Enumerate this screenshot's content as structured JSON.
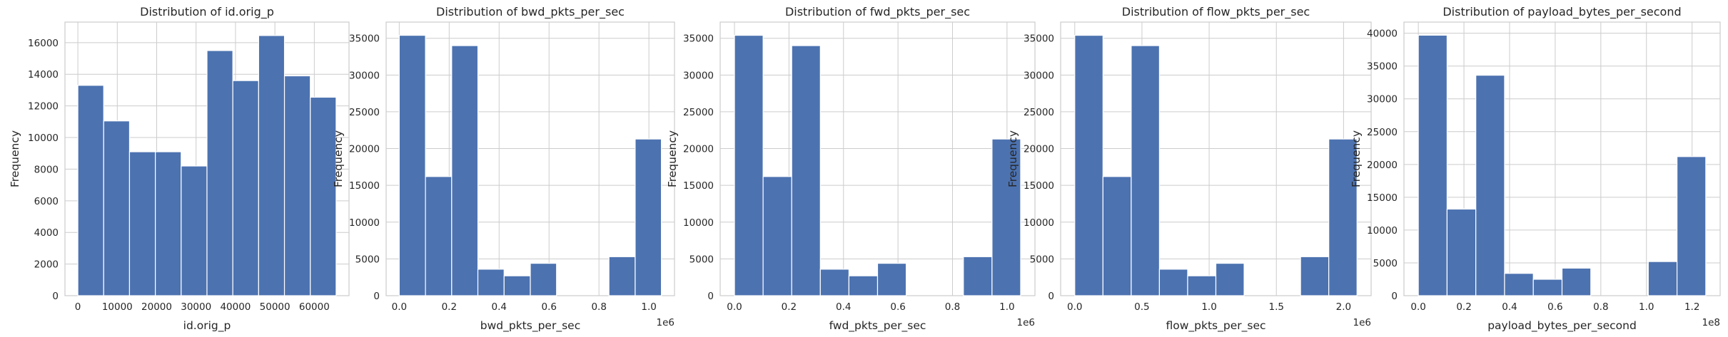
{
  "chart_data": [
    {
      "type": "bar",
      "title": "Distribution of id.orig_p",
      "xlabel": "id.orig_p",
      "ylabel": "Frequency",
      "x_offset_label": "",
      "bin_edges": [
        0,
        6553.5,
        13107,
        19660.5,
        26214,
        32767.5,
        39321,
        45874.5,
        52428,
        58981.5,
        65535
      ],
      "values": [
        13300,
        11050,
        9100,
        9100,
        8200,
        15500,
        13600,
        16450,
        13900,
        12550
      ],
      "xlim": [
        -3276.75,
        68811.75
      ],
      "ylim": [
        0,
        17300
      ],
      "xticks": [
        0,
        10000,
        20000,
        30000,
        40000,
        50000,
        60000
      ],
      "xtick_labels": [
        "0",
        "10000",
        "20000",
        "30000",
        "40000",
        "50000",
        "60000"
      ],
      "yticks": [
        0,
        2000,
        4000,
        6000,
        8000,
        10000,
        12000,
        14000,
        16000
      ],
      "ytick_labels": [
        "0",
        "2000",
        "4000",
        "6000",
        "8000",
        "10000",
        "12000",
        "14000",
        "16000"
      ],
      "grid": true
    },
    {
      "type": "bar",
      "title": "Distribution of bwd_pkts_per_sec",
      "xlabel": "bwd_pkts_per_sec",
      "ylabel": "Frequency",
      "x_offset_label": "1e6",
      "bin_edges": [
        0,
        0.105,
        0.21,
        0.315,
        0.42,
        0.525,
        0.63,
        0.735,
        0.84,
        0.945,
        1.05
      ],
      "values": [
        35400,
        16200,
        34000,
        3600,
        2700,
        4400,
        0,
        0,
        5300,
        21300
      ],
      "xlim": [
        -0.0525,
        1.1025
      ],
      "ylim": [
        0,
        37200
      ],
      "xticks": [
        0,
        0.2,
        0.4,
        0.6,
        0.8,
        1.0
      ],
      "xtick_labels": [
        "0.0",
        "0.2",
        "0.4",
        "0.6",
        "0.8",
        "1.0"
      ],
      "yticks": [
        0,
        5000,
        10000,
        15000,
        20000,
        25000,
        30000,
        35000
      ],
      "ytick_labels": [
        "0",
        "5000",
        "10000",
        "15000",
        "20000",
        "25000",
        "30000",
        "35000"
      ],
      "grid": true
    },
    {
      "type": "bar",
      "title": "Distribution of fwd_pkts_per_sec",
      "xlabel": "fwd_pkts_per_sec",
      "ylabel": "Frequency",
      "x_offset_label": "1e6",
      "bin_edges": [
        0,
        0.105,
        0.21,
        0.315,
        0.42,
        0.525,
        0.63,
        0.735,
        0.84,
        0.945,
        1.05
      ],
      "values": [
        35400,
        16200,
        34000,
        3600,
        2700,
        4400,
        0,
        0,
        5300,
        21300
      ],
      "xlim": [
        -0.0525,
        1.1025
      ],
      "ylim": [
        0,
        37200
      ],
      "xticks": [
        0,
        0.2,
        0.4,
        0.6,
        0.8,
        1.0
      ],
      "xtick_labels": [
        "0.0",
        "0.2",
        "0.4",
        "0.6",
        "0.8",
        "1.0"
      ],
      "yticks": [
        0,
        5000,
        10000,
        15000,
        20000,
        25000,
        30000,
        35000
      ],
      "ytick_labels": [
        "0",
        "5000",
        "10000",
        "15000",
        "20000",
        "25000",
        "30000",
        "35000"
      ],
      "grid": true
    },
    {
      "type": "bar",
      "title": "Distribution of flow_pkts_per_sec",
      "xlabel": "flow_pkts_per_sec",
      "ylabel": "Frequency",
      "x_offset_label": "1e6",
      "bin_edges": [
        0,
        0.21,
        0.42,
        0.63,
        0.84,
        1.05,
        1.26,
        1.47,
        1.68,
        1.89,
        2.1
      ],
      "values": [
        35400,
        16200,
        34000,
        3600,
        2700,
        4400,
        0,
        0,
        5300,
        21300
      ],
      "xlim": [
        -0.105,
        2.205
      ],
      "ylim": [
        0,
        37200
      ],
      "xticks": [
        0,
        0.5,
        1.0,
        1.5,
        2.0
      ],
      "xtick_labels": [
        "0.0",
        "0.5",
        "1.0",
        "1.5",
        "2.0"
      ],
      "yticks": [
        0,
        5000,
        10000,
        15000,
        20000,
        25000,
        30000,
        35000
      ],
      "ytick_labels": [
        "0",
        "5000",
        "10000",
        "15000",
        "20000",
        "25000",
        "30000",
        "35000"
      ],
      "grid": true
    },
    {
      "type": "bar",
      "title": "Distribution of payload_bytes_per_second",
      "xlabel": "payload_bytes_per_second",
      "ylabel": "Frequency",
      "x_offset_label": "1e8",
      "bin_edges": [
        0,
        0.126,
        0.252,
        0.378,
        0.504,
        0.63,
        0.756,
        0.882,
        1.008,
        1.134,
        1.26
      ],
      "values": [
        39700,
        13200,
        33600,
        3400,
        2500,
        4200,
        0,
        0,
        5200,
        21200
      ],
      "xlim": [
        -0.063,
        1.323
      ],
      "ylim": [
        0,
        41700
      ],
      "xticks": [
        0,
        0.2,
        0.4,
        0.6,
        0.8,
        1.0,
        1.2
      ],
      "xtick_labels": [
        "0.0",
        "0.2",
        "0.4",
        "0.6",
        "0.8",
        "1.0",
        "1.2"
      ],
      "yticks": [
        0,
        5000,
        10000,
        15000,
        20000,
        25000,
        30000,
        35000,
        40000
      ],
      "ytick_labels": [
        "0",
        "5000",
        "10000",
        "15000",
        "20000",
        "25000",
        "30000",
        "35000",
        "40000"
      ],
      "grid": true
    }
  ]
}
